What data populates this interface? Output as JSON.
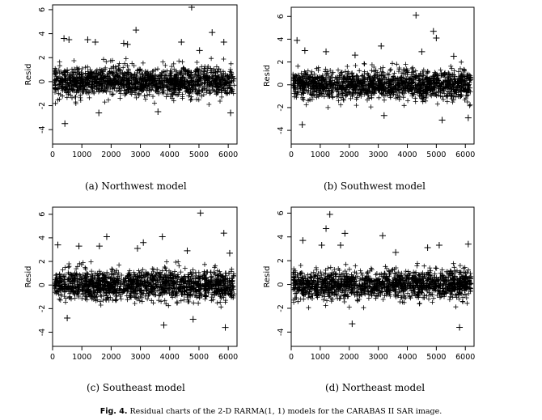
{
  "figure": {
    "label": "Fig. 4.",
    "caption": "Residual charts of the 2-D RARMA(1, 1) models for the CARABAS II SAR image."
  },
  "chart_data": [
    {
      "type": "scatter",
      "subcaption": "(a)  Northwest model",
      "ylabel": "Resid",
      "xlabel": "",
      "xlim": [
        0,
        6300
      ],
      "ylim": [
        -5.2,
        6.4
      ],
      "xticks": [
        0,
        1000,
        2000,
        3000,
        4000,
        5000,
        6000
      ],
      "yticks": [
        -4,
        -2,
        0,
        2,
        4,
        6
      ],
      "grid": false,
      "marker": "+",
      "n_points": 6272,
      "core_band": [
        -2.0,
        2.0
      ],
      "outliers": [
        [
          420,
          -3.5
        ],
        [
          390,
          3.6
        ],
        [
          560,
          3.5
        ],
        [
          1200,
          3.5
        ],
        [
          1460,
          3.3
        ],
        [
          1580,
          -2.6
        ],
        [
          2430,
          3.2
        ],
        [
          2560,
          3.1
        ],
        [
          2850,
          4.3
        ],
        [
          3600,
          -2.5
        ],
        [
          4400,
          3.3
        ],
        [
          4750,
          6.2
        ],
        [
          5020,
          2.6
        ],
        [
          5450,
          4.1
        ],
        [
          5850,
          3.3
        ],
        [
          6080,
          -2.6
        ]
      ]
    },
    {
      "type": "scatter",
      "subcaption": "(b)  Southwest model",
      "ylabel": "Resid",
      "xlabel": "",
      "xlim": [
        0,
        6300
      ],
      "ylim": [
        -5.2,
        6.8
      ],
      "xticks": [
        0,
        1000,
        2000,
        3000,
        4000,
        5000,
        6000
      ],
      "yticks": [
        -4,
        -2,
        0,
        2,
        4,
        6
      ],
      "grid": false,
      "marker": "+",
      "n_points": 6272,
      "core_band": [
        -2.0,
        2.0
      ],
      "outliers": [
        [
          200,
          3.9
        ],
        [
          380,
          -3.5
        ],
        [
          470,
          3.0
        ],
        [
          1200,
          2.9
        ],
        [
          2200,
          2.6
        ],
        [
          3100,
          3.4
        ],
        [
          3200,
          -2.7
        ],
        [
          4300,
          6.1
        ],
        [
          4500,
          2.9
        ],
        [
          4900,
          4.7
        ],
        [
          5000,
          4.1
        ],
        [
          5200,
          -3.1
        ],
        [
          5600,
          2.5
        ],
        [
          6100,
          -2.9
        ]
      ]
    },
    {
      "type": "scatter",
      "subcaption": "(c)  Southeast model",
      "ylabel": "Resid",
      "xlabel": "",
      "xlim": [
        0,
        6300
      ],
      "ylim": [
        -5.2,
        6.6
      ],
      "xticks": [
        0,
        1000,
        2000,
        3000,
        4000,
        5000,
        6000
      ],
      "yticks": [
        -4,
        -2,
        0,
        2,
        4,
        6
      ],
      "grid": false,
      "marker": "+",
      "n_points": 6272,
      "core_band": [
        -2.0,
        2.0
      ],
      "outliers": [
        [
          180,
          3.4
        ],
        [
          500,
          -2.8
        ],
        [
          900,
          3.3
        ],
        [
          1600,
          3.3
        ],
        [
          1850,
          4.1
        ],
        [
          2900,
          3.1
        ],
        [
          3100,
          3.6
        ],
        [
          3750,
          4.1
        ],
        [
          3800,
          -3.4
        ],
        [
          4600,
          2.9
        ],
        [
          4800,
          -2.9
        ],
        [
          5050,
          6.1
        ],
        [
          5850,
          4.4
        ],
        [
          5900,
          -3.6
        ],
        [
          6050,
          2.7
        ]
      ]
    },
    {
      "type": "scatter",
      "subcaption": "(d)  Northeast model",
      "ylabel": "Resid",
      "xlabel": "",
      "xlim": [
        0,
        6300
      ],
      "ylim": [
        -5.2,
        6.5
      ],
      "xticks": [
        0,
        1000,
        2000,
        3000,
        4000,
        5000,
        6000
      ],
      "yticks": [
        -4,
        -2,
        0,
        2,
        4,
        6
      ],
      "grid": false,
      "marker": "+",
      "n_points": 6272,
      "core_band": [
        -2.0,
        2.0
      ],
      "outliers": [
        [
          400,
          3.7
        ],
        [
          1050,
          3.3
        ],
        [
          1200,
          4.7
        ],
        [
          1330,
          5.9
        ],
        [
          1700,
          3.3
        ],
        [
          1850,
          4.3
        ],
        [
          2100,
          -3.3
        ],
        [
          3150,
          4.1
        ],
        [
          3600,
          2.7
        ],
        [
          4700,
          3.1
        ],
        [
          5100,
          3.3
        ],
        [
          5800,
          -3.6
        ],
        [
          6100,
          3.4
        ]
      ]
    }
  ]
}
